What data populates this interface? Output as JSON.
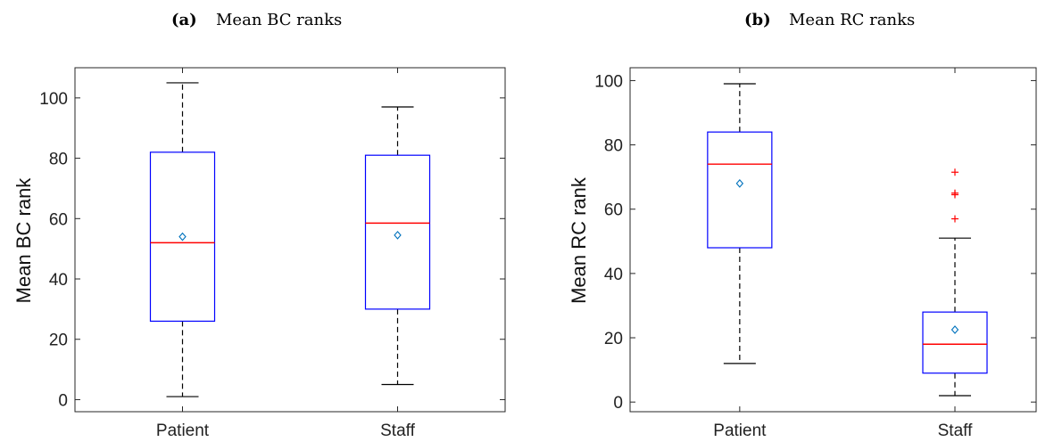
{
  "chart_data": [
    {
      "type": "box",
      "panel_tag": "(a)",
      "title": "Mean BC ranks",
      "xlabel": "",
      "ylabel": "Mean BC rank",
      "categories": [
        "Patient",
        "Staff"
      ],
      "ylim": [
        -4,
        110
      ],
      "yticks": [
        0,
        20,
        40,
        60,
        80,
        100
      ],
      "grid": false,
      "legend": "none",
      "boxes": [
        {
          "category": "Patient",
          "whisker_low": 1,
          "q1": 26,
          "median": 52,
          "q3": 82,
          "whisker_high": 105,
          "mean": 54,
          "outliers": []
        },
        {
          "category": "Staff",
          "whisker_low": 5,
          "q1": 30,
          "median": 58.5,
          "q3": 81,
          "whisker_high": 97,
          "mean": 54.5,
          "outliers": []
        }
      ],
      "colors": {
        "box": "#0000ff",
        "median": "#ff0000",
        "whisker": "#000000",
        "mean_marker": "#0072bd",
        "outlier": "#ff0000"
      }
    },
    {
      "type": "box",
      "panel_tag": "(b)",
      "title": "Mean RC ranks",
      "xlabel": "",
      "ylabel": "Mean RC rank",
      "categories": [
        "Patient",
        "Staff"
      ],
      "ylim": [
        -3,
        104
      ],
      "yticks": [
        0,
        20,
        40,
        60,
        80,
        100
      ],
      "grid": false,
      "legend": "none",
      "boxes": [
        {
          "category": "Patient",
          "whisker_low": 12,
          "q1": 48,
          "median": 74,
          "q3": 84,
          "whisker_high": 99,
          "mean": 68,
          "outliers": []
        },
        {
          "category": "Staff",
          "whisker_low": 2,
          "q1": 9,
          "median": 18,
          "q3": 28,
          "whisker_high": 51,
          "mean": 22.5,
          "outliers": [
            57,
            64.5,
            65,
            71.5
          ]
        }
      ],
      "colors": {
        "box": "#0000ff",
        "median": "#ff0000",
        "whisker": "#000000",
        "mean_marker": "#0072bd",
        "outlier": "#ff0000"
      }
    }
  ]
}
